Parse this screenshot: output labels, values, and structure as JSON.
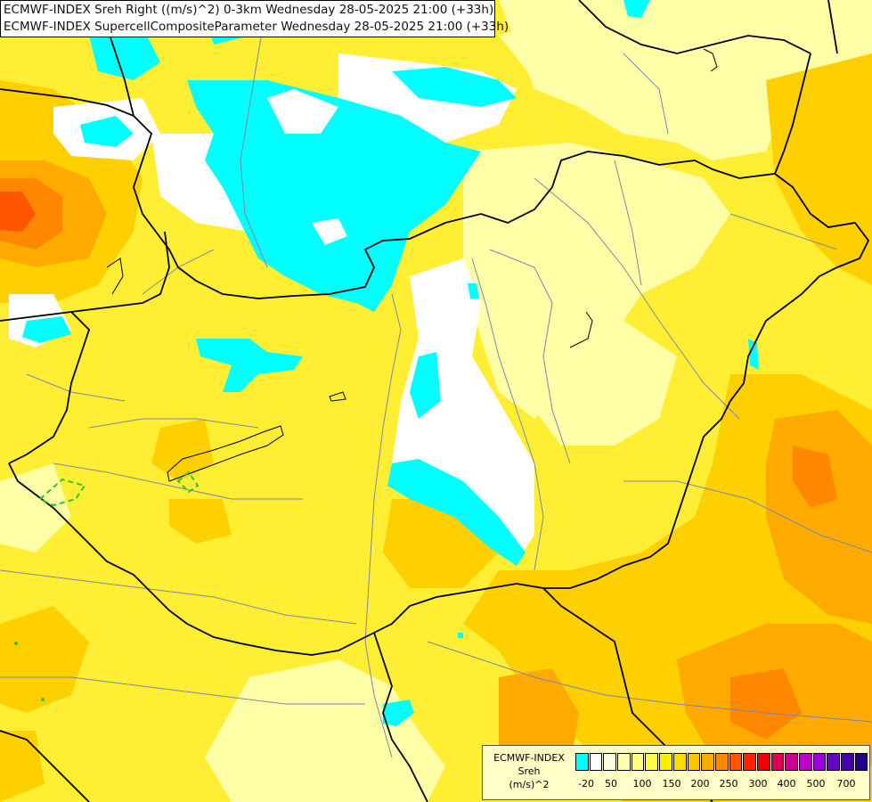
{
  "titles": {
    "line1": "ECMWF-INDEX Sreh Right ((m/s)^2) 0-3km Wednesday 28-05-2025 21:00 (+33h)",
    "line2": "ECMWF-INDEX SupercellCompositeParameter Wednesday 28-05-2025 21:00 (+33h)"
  },
  "legend": {
    "line1": "ECMWF-INDEX",
    "line2": "Sreh",
    "line3": "(m/s)^2",
    "colors": [
      "#00ffff",
      "#ffffff",
      "#ffffe0",
      "#ffffb0",
      "#ffff80",
      "#ffff40",
      "#ffee00",
      "#ffdd00",
      "#ffc400",
      "#ffaa00",
      "#ff8800",
      "#ff5500",
      "#ff2200",
      "#ee0000",
      "#dd0055",
      "#cc0099",
      "#bb00cc",
      "#9900dd",
      "#6600cc",
      "#4400aa",
      "#220088"
    ],
    "ticks": [
      "-20",
      "50",
      "100",
      "150",
      "200",
      "250",
      "300",
      "400",
      "500",
      "700"
    ]
  },
  "palette": {
    "cyan": "#00ffff",
    "white": "#ffffff",
    "pale": "#ffffa8",
    "yellow": "#ffee33",
    "gold": "#ffd000",
    "orange": "#ffaa00",
    "dark_orange": "#ff8800",
    "red_orange": "#ff5500",
    "border": "#000000",
    "river": "#7a8aa6",
    "scp_contour": "#22cc22"
  }
}
